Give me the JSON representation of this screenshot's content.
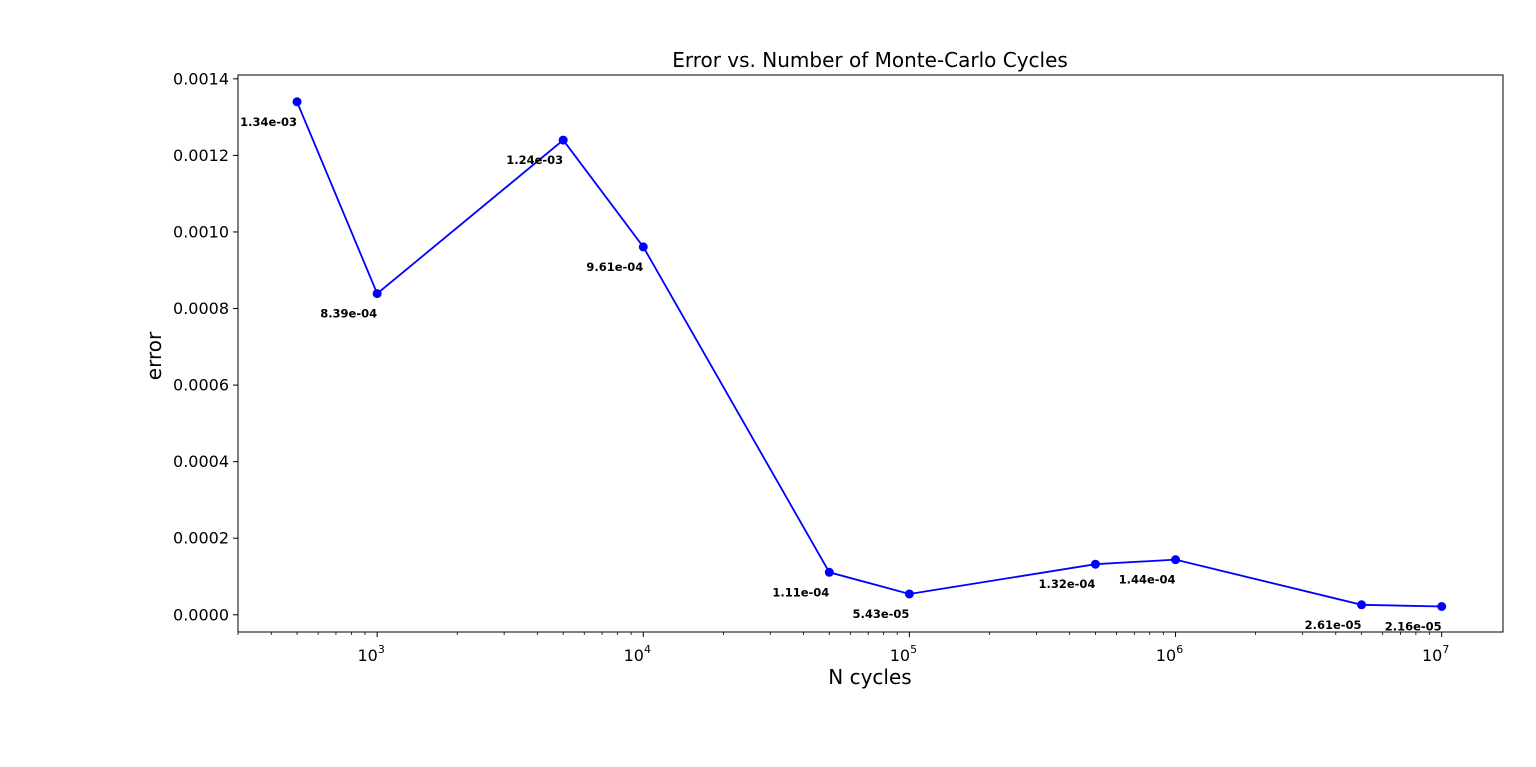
{
  "chart_data": {
    "type": "line",
    "title": "Error vs. Number of Monte-Carlo Cycles",
    "xlabel": "N cycles",
    "ylabel": "error",
    "xscale": "log",
    "xlim": [
      300,
      17000000
    ],
    "ylim": [
      -4.5e-05,
      0.00141
    ],
    "grid": false,
    "line_color": "#0000ff",
    "marker": "circle",
    "x": [
      500,
      1000,
      5000,
      10000,
      50000,
      100000,
      500000,
      1000000,
      5000000,
      10000000
    ],
    "y": [
      0.00134,
      0.000839,
      0.00124,
      0.000961,
      0.000111,
      5.43e-05,
      0.000132,
      0.000144,
      2.61e-05,
      2.16e-05
    ],
    "point_labels": [
      "1.34e-03",
      "8.39e-04",
      "1.24e-03",
      "9.61e-04",
      "1.11e-04",
      "5.43e-05",
      "1.32e-04",
      "1.44e-04",
      "2.61e-05",
      "2.16e-05"
    ],
    "y_ticks": [
      0,
      0.0002,
      0.0004,
      0.0006,
      0.0008,
      0.001,
      0.0012,
      0.0014
    ],
    "y_tick_labels": [
      "0.0000",
      "0.0002",
      "0.0004",
      "0.0006",
      "0.0008",
      "0.0010",
      "0.0012",
      "0.0014"
    ],
    "x_ticks": [
      1000,
      10000,
      100000,
      1000000,
      10000000
    ],
    "x_tick_base": "10",
    "x_tick_exponents": [
      "3",
      "4",
      "5",
      "6",
      "7"
    ]
  }
}
